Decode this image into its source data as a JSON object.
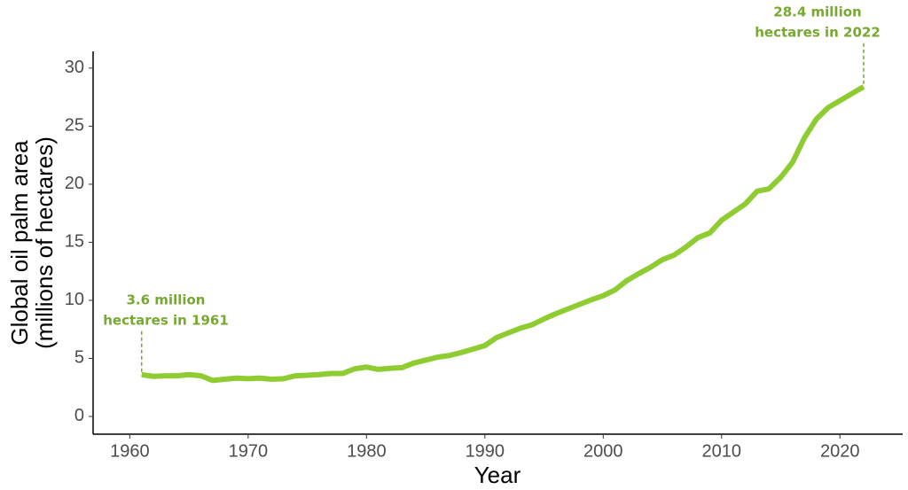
{
  "chart_data": {
    "type": "line",
    "xlabel": "Year",
    "ylabel": [
      "Global oil palm area",
      "(millions of hectares)"
    ],
    "x": [
      1961,
      1962,
      1963,
      1964,
      1965,
      1966,
      1967,
      1968,
      1969,
      1970,
      1971,
      1972,
      1973,
      1974,
      1975,
      1976,
      1977,
      1978,
      1979,
      1980,
      1981,
      1982,
      1983,
      1984,
      1985,
      1986,
      1987,
      1988,
      1989,
      1990,
      1991,
      1992,
      1993,
      1994,
      1995,
      1996,
      1997,
      1998,
      1999,
      2000,
      2001,
      2002,
      2003,
      2004,
      2005,
      2006,
      2007,
      2008,
      2009,
      2010,
      2011,
      2012,
      2013,
      2014,
      2015,
      2016,
      2017,
      2018,
      2019,
      2020,
      2021,
      2022
    ],
    "series": [
      {
        "color": "#8fcc32",
        "values": [
          3.6,
          3.45,
          3.5,
          3.5,
          3.6,
          3.5,
          3.1,
          3.2,
          3.3,
          3.25,
          3.3,
          3.2,
          3.25,
          3.5,
          3.55,
          3.6,
          3.7,
          3.7,
          4.1,
          4.25,
          4.05,
          4.15,
          4.2,
          4.6,
          4.85,
          5.1,
          5.25,
          5.5,
          5.8,
          6.1,
          6.8,
          7.2,
          7.6,
          7.9,
          8.4,
          8.85,
          9.25,
          9.65,
          10.05,
          10.4,
          10.9,
          11.7,
          12.3,
          12.85,
          13.5,
          13.9,
          14.6,
          15.4,
          15.8,
          16.9,
          17.6,
          18.3,
          19.4,
          19.6,
          20.6,
          21.9,
          24.0,
          25.6,
          26.6,
          27.2,
          27.8,
          28.4
        ]
      }
    ],
    "annotations": [
      {
        "text": [
          "3.6 million",
          "hectares in 1961"
        ],
        "x": 1961,
        "y": 3.6
      },
      {
        "text": [
          "28.4 million",
          "hectares in 2022"
        ],
        "x": 2022,
        "y": 28.4
      }
    ],
    "annotation_color": "#76a832",
    "xlim": [
      1956.9,
      2025.3
    ],
    "xticks": [
      1960,
      1970,
      1980,
      1990,
      2000,
      2010,
      2020
    ],
    "ylim": [
      -1.53,
      31.9
    ],
    "yticks": [
      0,
      5,
      10,
      15,
      20,
      25,
      30
    ],
    "grid": false
  }
}
